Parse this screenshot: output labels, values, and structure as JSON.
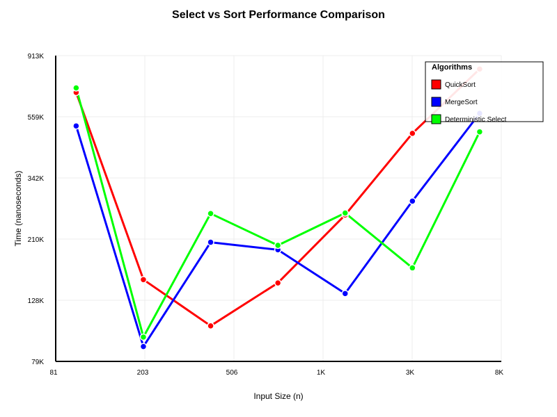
{
  "chart_data": {
    "type": "line",
    "title": "Select vs Sort Performance Comparison",
    "xlabel": "Input Size (n)",
    "ylabel": "Time (nanoseconds)",
    "x_scale": "log",
    "y_scale": "log",
    "xlim": [
      81,
      8000
    ],
    "ylim": [
      79000,
      913000
    ],
    "x_ticks": [
      "81",
      "203",
      "506",
      "1K",
      "3K",
      "8K"
    ],
    "y_ticks": [
      "79K",
      "128K",
      "210K",
      "342K",
      "559K",
      "913K"
    ],
    "x": [
      100,
      200,
      400,
      800,
      1600,
      3200,
      6400
    ],
    "legend_title": "Algorithms",
    "legend_position": "top-right",
    "grid": true,
    "series": [
      {
        "name": "QuickSort",
        "color": "#ff0000",
        "values": [
          680000,
          152000,
          105000,
          148000,
          255000,
          490000,
          820000
        ]
      },
      {
        "name": "MergeSort",
        "color": "#0000ff",
        "values": [
          520000,
          89000,
          205000,
          193000,
          136000,
          285000,
          575000
        ]
      },
      {
        "name": "Deterministic Select",
        "color": "#00ff00",
        "values": [
          705000,
          96000,
          258000,
          200000,
          259000,
          167000,
          496000
        ]
      }
    ]
  }
}
